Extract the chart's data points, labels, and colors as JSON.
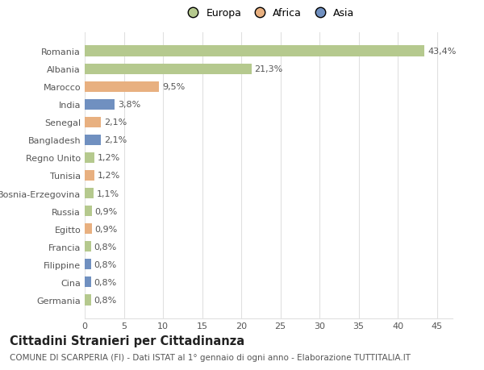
{
  "countries": [
    "Germania",
    "Cina",
    "Filippine",
    "Francia",
    "Egitto",
    "Russia",
    "Bosnia-Erzegovina",
    "Tunisia",
    "Regno Unito",
    "Bangladesh",
    "Senegal",
    "India",
    "Marocco",
    "Albania",
    "Romania"
  ],
  "values": [
    0.8,
    0.8,
    0.8,
    0.8,
    0.9,
    0.9,
    1.1,
    1.2,
    1.2,
    2.1,
    2.1,
    3.8,
    9.5,
    21.3,
    43.4
  ],
  "labels": [
    "0,8%",
    "0,8%",
    "0,8%",
    "0,8%",
    "0,9%",
    "0,9%",
    "1,1%",
    "1,2%",
    "1,2%",
    "2,1%",
    "2,1%",
    "3,8%",
    "9,5%",
    "21,3%",
    "43,4%"
  ],
  "continents": [
    "Europa",
    "Asia",
    "Asia",
    "Europa",
    "Africa",
    "Europa",
    "Europa",
    "Africa",
    "Europa",
    "Asia",
    "Africa",
    "Asia",
    "Africa",
    "Europa",
    "Europa"
  ],
  "colors": {
    "Europa": "#b5c98e",
    "Africa": "#e8b080",
    "Asia": "#7090c0"
  },
  "legend_labels": [
    "Europa",
    "Africa",
    "Asia"
  ],
  "legend_colors": [
    "#b5c98e",
    "#e8b080",
    "#7090c0"
  ],
  "title": "Cittadini Stranieri per Cittadinanza",
  "subtitle": "COMUNE DI SCARPERIA (FI) - Dati ISTAT al 1° gennaio di ogni anno - Elaborazione TUTTITALIA.IT",
  "xlim": [
    0,
    47
  ],
  "xticks": [
    0,
    5,
    10,
    15,
    20,
    25,
    30,
    35,
    40,
    45
  ],
  "bg_color": "#ffffff",
  "grid_color": "#e0e0e0",
  "bar_height": 0.6,
  "label_fontsize": 8.0,
  "tick_fontsize": 8.0,
  "title_fontsize": 10.5,
  "subtitle_fontsize": 7.5
}
